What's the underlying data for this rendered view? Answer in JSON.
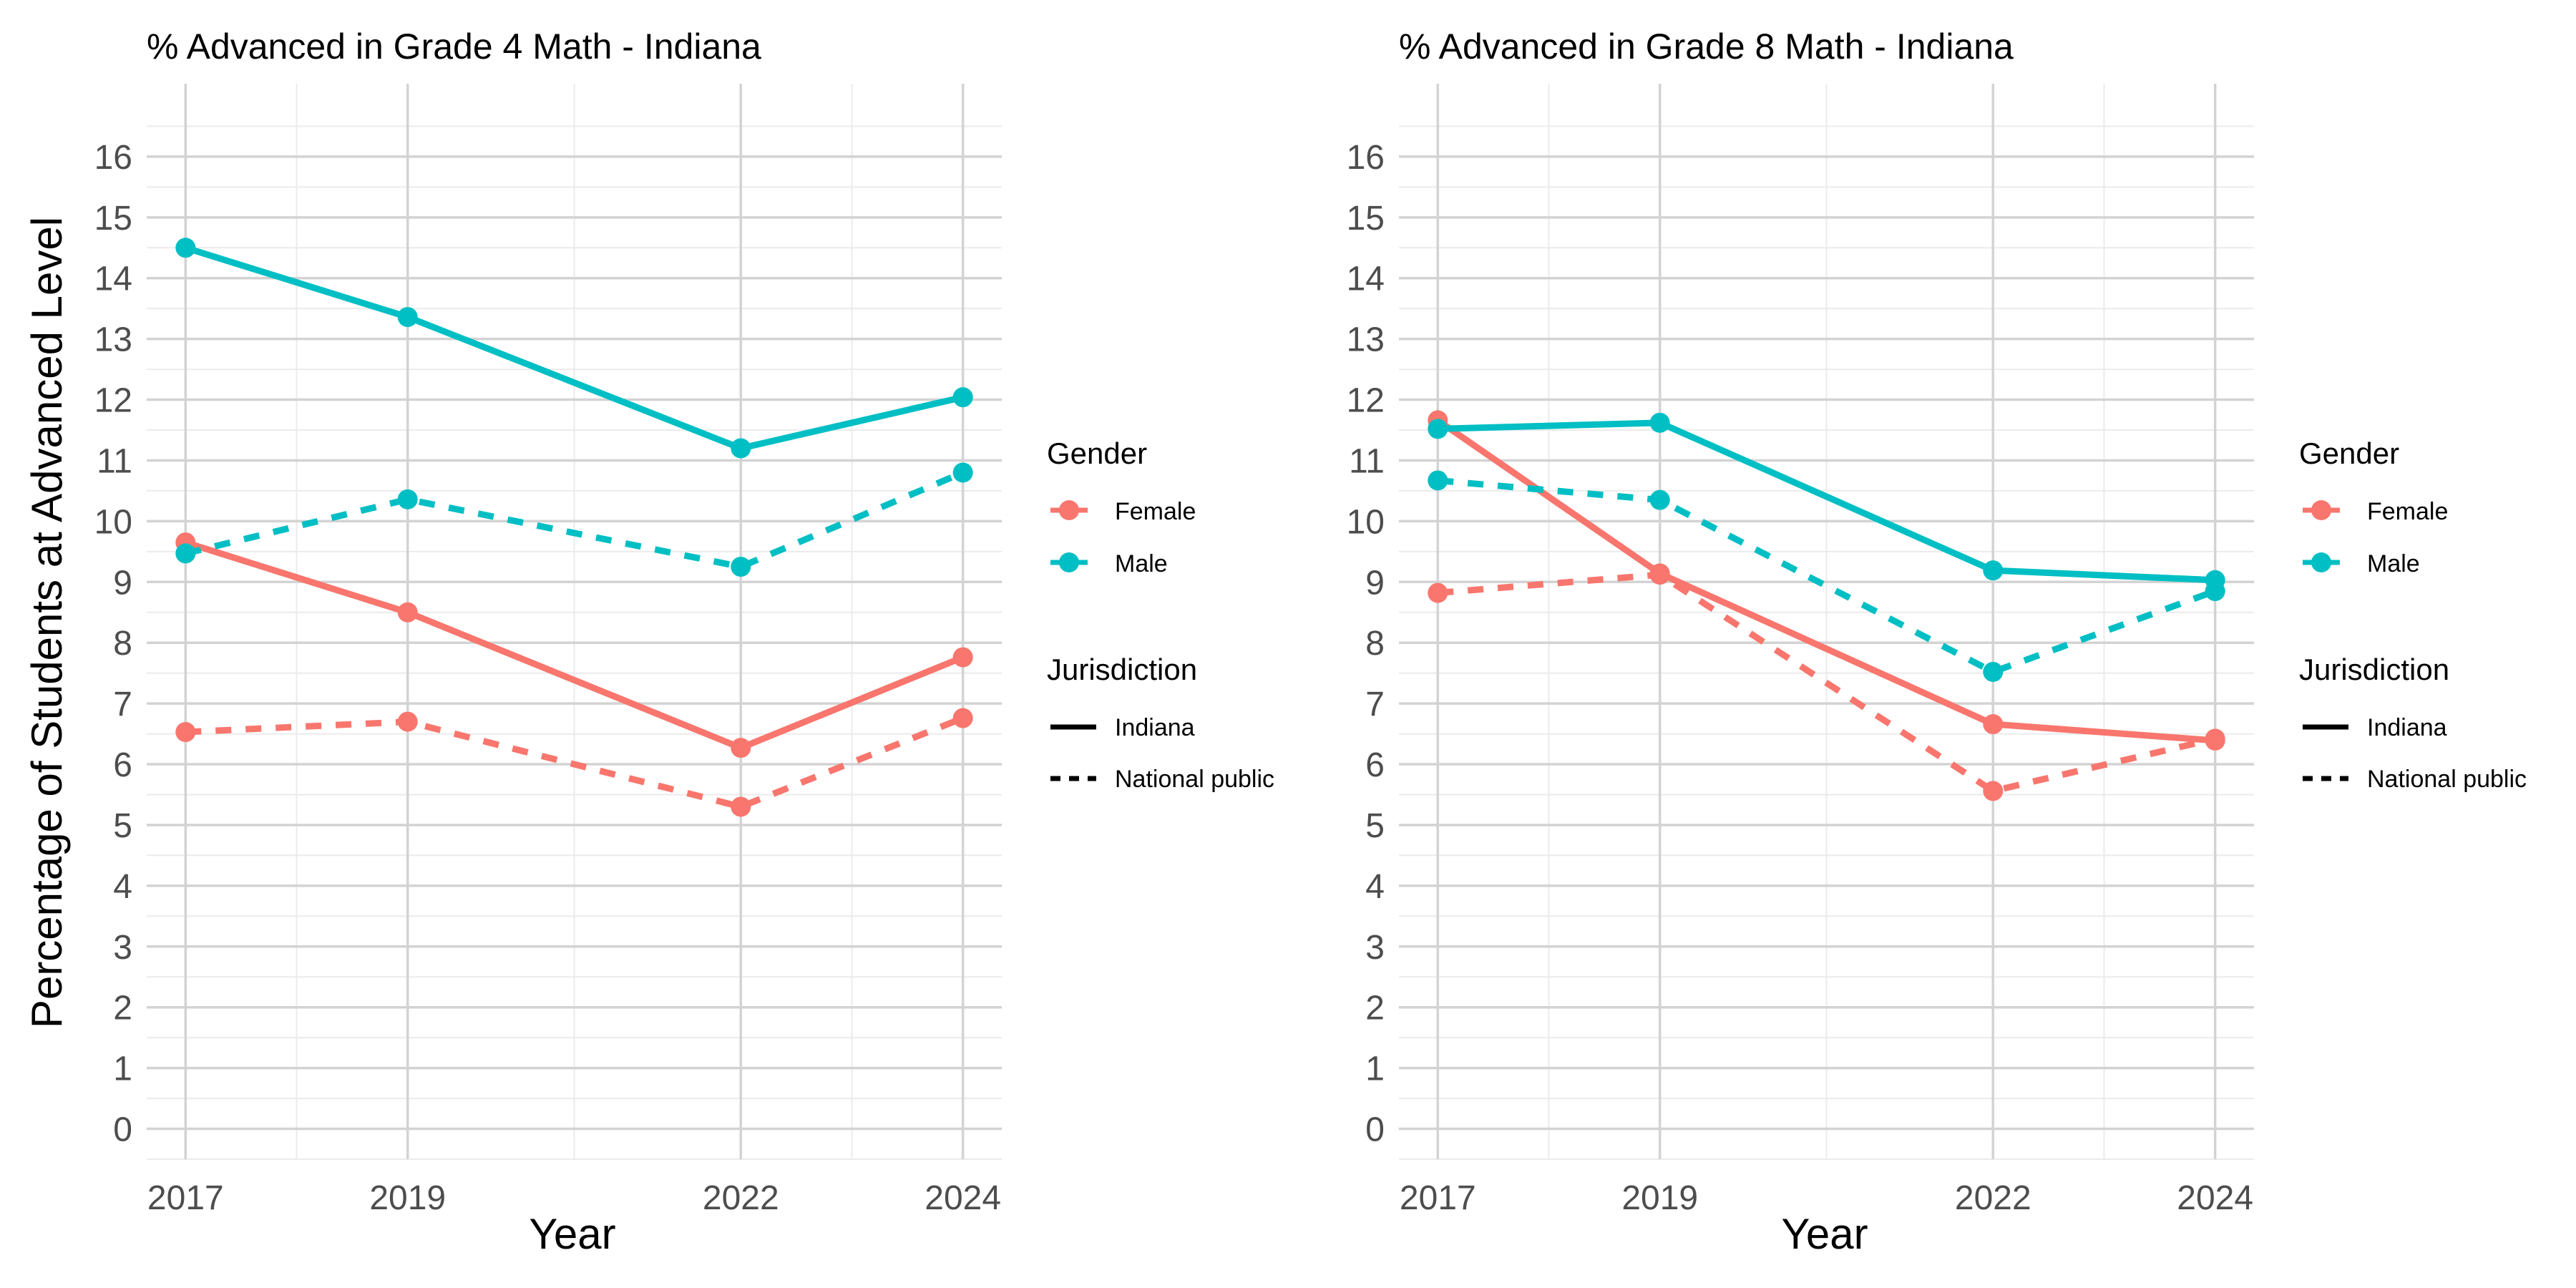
{
  "shared": {
    "ylabel": "Percentage of Students at Advanced Level",
    "xlabel": "Year"
  },
  "legend": {
    "gender_title": "Gender",
    "gender_items": [
      {
        "label": "Female",
        "color": "#F8766D"
      },
      {
        "label": "Male",
        "color": "#00BFC4"
      }
    ],
    "jurisdiction_title": "Jurisdiction",
    "jurisdiction_items": [
      {
        "label": "Indiana",
        "style": "solid"
      },
      {
        "label": "National public",
        "style": "dashed"
      }
    ]
  },
  "colors": {
    "female": "#F8766D",
    "male": "#00BFC4",
    "grid": "#D3D3D3",
    "text": "#4D4D4D"
  },
  "chart_data": [
    {
      "type": "line",
      "title": "% Advanced in Grade 4 Math - Indiana",
      "xlabel": "Year",
      "ylabel": "Percentage of Students at Advanced Level",
      "x": [
        2017,
        2019,
        2022,
        2024
      ],
      "x_ticks": [
        "2017",
        "2019",
        "2022",
        "2024"
      ],
      "xlim": [
        2016.65,
        2024.35
      ],
      "ylim": [
        -0.5,
        17.2
      ],
      "y_ticks": [
        "0",
        "1",
        "2",
        "3",
        "4",
        "5",
        "6",
        "7",
        "8",
        "9",
        "10",
        "11",
        "12",
        "13",
        "14",
        "15",
        "16"
      ],
      "grid": true,
      "legend_position": "right",
      "series": [
        {
          "name": "Female",
          "jurisdiction": "Indiana",
          "gender": "Female",
          "dash": "solid",
          "values": [
            9.65,
            8.5,
            6.27,
            7.76
          ]
        },
        {
          "name": "Female",
          "jurisdiction": "National public",
          "gender": "Female",
          "dash": "dashed",
          "values": [
            6.53,
            6.7,
            5.3,
            6.76
          ]
        },
        {
          "name": "Male",
          "jurisdiction": "Indiana",
          "gender": "Male",
          "dash": "solid",
          "values": [
            14.5,
            13.36,
            11.2,
            12.04
          ]
        },
        {
          "name": "Male",
          "jurisdiction": "National public",
          "gender": "Male",
          "dash": "dashed",
          "values": [
            9.47,
            10.36,
            9.25,
            10.8
          ]
        }
      ]
    },
    {
      "type": "line",
      "title": "% Advanced in Grade 8 Math - Indiana",
      "xlabel": "Year",
      "ylabel": "",
      "x": [
        2017,
        2019,
        2022,
        2024
      ],
      "x_ticks": [
        "2017",
        "2019",
        "2022",
        "2024"
      ],
      "xlim": [
        2016.65,
        2024.35
      ],
      "ylim": [
        -0.5,
        17.2
      ],
      "y_ticks": [
        "0",
        "1",
        "2",
        "3",
        "4",
        "5",
        "6",
        "7",
        "8",
        "9",
        "10",
        "11",
        "12",
        "13",
        "14",
        "15",
        "16"
      ],
      "grid": true,
      "legend_position": "right",
      "series": [
        {
          "name": "Female",
          "jurisdiction": "Indiana",
          "gender": "Female",
          "dash": "solid",
          "values": [
            11.66,
            9.14,
            6.66,
            6.39
          ]
        },
        {
          "name": "Female",
          "jurisdiction": "National public",
          "gender": "Female",
          "dash": "dashed",
          "values": [
            8.82,
            9.12,
            5.56,
            6.42
          ]
        },
        {
          "name": "Male",
          "jurisdiction": "Indiana",
          "gender": "Male",
          "dash": "solid",
          "values": [
            11.52,
            11.62,
            9.19,
            9.03
          ]
        },
        {
          "name": "Male",
          "jurisdiction": "National public",
          "gender": "Male",
          "dash": "dashed",
          "values": [
            10.67,
            10.35,
            7.52,
            8.85
          ]
        }
      ]
    }
  ]
}
